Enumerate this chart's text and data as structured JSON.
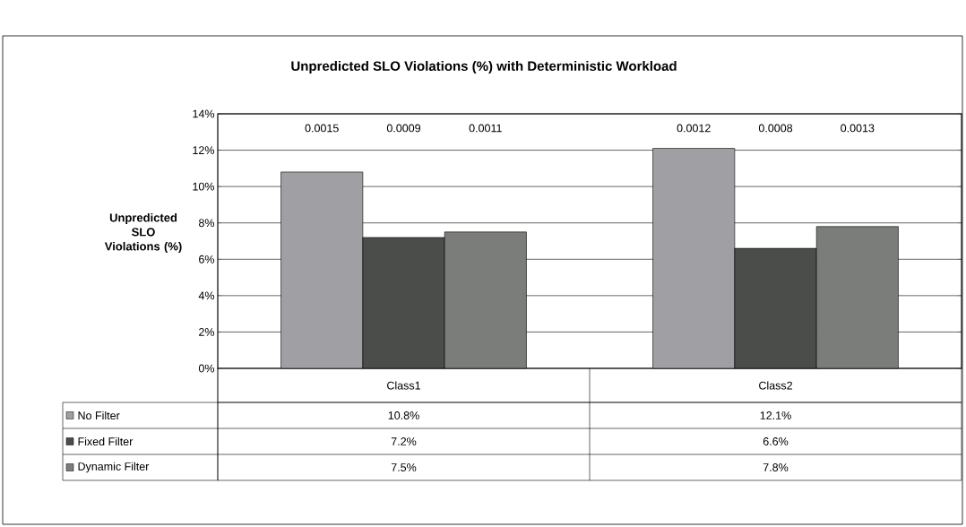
{
  "chart_data": {
    "type": "bar",
    "title": "Unpredicted SLO Violations (%) with Deterministic Workload",
    "ylabel": "Unpredicted SLO Violations (%)",
    "categories": [
      "Class1",
      "Class2"
    ],
    "series": [
      {
        "name": "No Filter",
        "color": "#a0a0a4",
        "values": [
          10.8,
          12.1
        ],
        "value_labels": [
          "10.8%",
          "12.1%"
        ]
      },
      {
        "name": "Fixed Filter",
        "color": "#4b4d4a",
        "values": [
          7.2,
          6.6
        ],
        "value_labels": [
          "7.2%",
          "6.6%"
        ]
      },
      {
        "name": "Dynamic Filter",
        "color": "#7b7d7a",
        "values": [
          7.5,
          7.8
        ],
        "value_labels": [
          "7.5%",
          "7.8%"
        ]
      }
    ],
    "ylim": [
      0,
      14
    ],
    "yticks": [
      {
        "value": 0,
        "label": "0%"
      },
      {
        "value": 2,
        "label": "2%"
      },
      {
        "value": 4,
        "label": "4%"
      },
      {
        "value": 6,
        "label": "6%"
      },
      {
        "value": 8,
        "label": "8%"
      },
      {
        "value": 10,
        "label": "10%"
      },
      {
        "value": 12,
        "label": "12%"
      },
      {
        "value": 14,
        "label": "14%"
      }
    ],
    "grid": "y",
    "legend": "bottom",
    "annotations": [
      "0.0015",
      "0.0009",
      "0.0011",
      "0.0012",
      "0.0008",
      "0.0013"
    ]
  }
}
